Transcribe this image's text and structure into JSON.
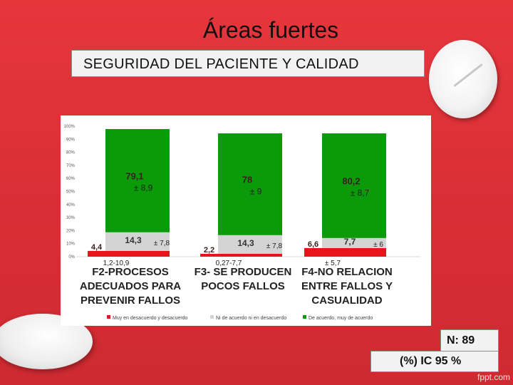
{
  "slide": {
    "title": "Áreas fuertes",
    "subtitle": "SEGURIDAD DEL PACIENTE Y CALIDAD",
    "n_label": "N: 89",
    "ic_label": "(%) IC 95 %",
    "watermark": "fppt.com"
  },
  "chart_data": {
    "type": "bar",
    "stacked": true,
    "ylim": [
      0,
      100
    ],
    "y_ticks": [
      "0%",
      "10%",
      "20%",
      "30%",
      "40%",
      "50%",
      "60%",
      "70%",
      "80%",
      "90%",
      "100%"
    ],
    "categories": [
      [
        "F2-PROCESOS",
        "ADECUADOS PARA",
        "PREVENIR FALLOS"
      ],
      [
        "F3- SE PRODUCEN",
        "POCOS FALLOS"
      ],
      [
        "F4-NO RELACION",
        "ENTRE FALLOS Y",
        "CASUALIDAD"
      ]
    ],
    "series": [
      {
        "name": "Muy en desacuerdo y desacuerdo",
        "color": "#e8141b",
        "values": [
          4.4,
          2.2,
          6.6
        ],
        "labels": [
          "4,4",
          "2,2",
          "6,6"
        ],
        "ci": [
          "1,2-10,9",
          "0,27-7,7",
          "± 5,7"
        ]
      },
      {
        "name": "Ni de acuerdo ni en desacuerdo",
        "color": "#d4d4d4",
        "values": [
          14.3,
          14.3,
          7.7
        ],
        "labels": [
          "14,3",
          "14,3",
          "7,7"
        ],
        "ci": [
          "± 7,8",
          "± 7,8",
          "± 6"
        ]
      },
      {
        "name": "De acuerdo, muy de acuerdo",
        "color": "#0a9a0a",
        "values": [
          79.1,
          78,
          80.2
        ],
        "labels": [
          "79,1",
          "78",
          "80,2"
        ],
        "ci": [
          "± 8,9",
          "± 9",
          "± 8,7"
        ]
      }
    ],
    "legend_position": "bottom",
    "grid": false
  }
}
